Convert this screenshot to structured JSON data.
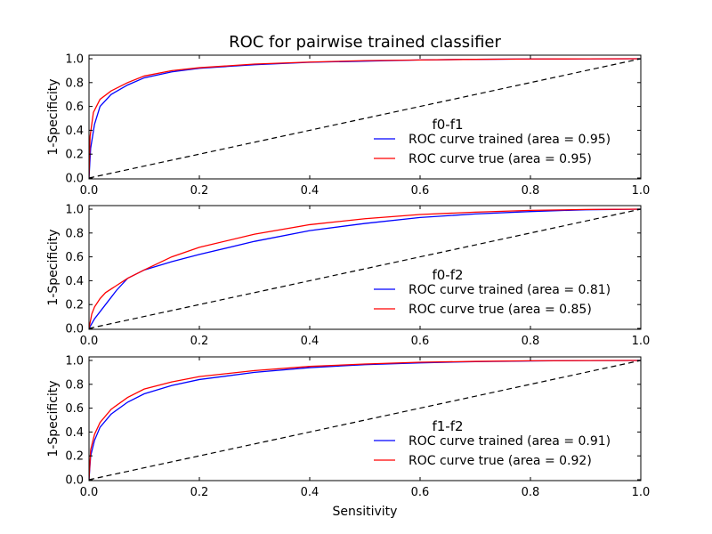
{
  "title": "ROC for pairwise trained classifier",
  "xlabel": "Sensitivity",
  "colors": {
    "trained": "#0000ff",
    "true": "#ff0000",
    "chance": "#000000"
  },
  "chart_data": [
    {
      "type": "line",
      "legend_title": "f0-f1",
      "ylabel": "1-Specificity",
      "xlim": [
        0,
        1
      ],
      "ylim": [
        0,
        1
      ],
      "xticks": [
        "0.0",
        "0.2",
        "0.4",
        "0.6",
        "0.8",
        "1.0"
      ],
      "yticks": [
        "0.0",
        "0.2",
        "0.4",
        "0.6",
        "0.8",
        "1.0"
      ],
      "legend": "lower-right",
      "grid": false,
      "series": [
        {
          "name": "ROC curve trained (area = 0.95)",
          "color": "#0000ff",
          "x": [
            0,
            0.003,
            0.01,
            0.02,
            0.04,
            0.07,
            0.1,
            0.15,
            0.2,
            0.3,
            0.4,
            0.5,
            0.6,
            0.7,
            0.8,
            0.9,
            1.0
          ],
          "y": [
            0,
            0.25,
            0.45,
            0.6,
            0.7,
            0.78,
            0.84,
            0.89,
            0.92,
            0.95,
            0.97,
            0.98,
            0.99,
            0.995,
            0.998,
            0.999,
            1.0
          ]
        },
        {
          "name": "ROC curve true (area = 0.95)",
          "color": "#ff0000",
          "x": [
            0,
            0.002,
            0.008,
            0.02,
            0.04,
            0.07,
            0.1,
            0.15,
            0.2,
            0.3,
            0.4,
            0.5,
            0.6,
            0.7,
            0.8,
            0.9,
            1.0
          ],
          "y": [
            0,
            0.35,
            0.55,
            0.66,
            0.73,
            0.8,
            0.855,
            0.9,
            0.925,
            0.955,
            0.972,
            0.984,
            0.99,
            0.995,
            0.998,
            0.999,
            1.0
          ]
        },
        {
          "name": "",
          "color": "#000000",
          "dashed": true,
          "x": [
            0,
            1
          ],
          "y": [
            0,
            1
          ]
        }
      ]
    },
    {
      "type": "line",
      "legend_title": "f0-f2",
      "ylabel": "1-Specificity",
      "xlim": [
        0,
        1
      ],
      "ylim": [
        0,
        1
      ],
      "xticks": [
        "0.0",
        "0.2",
        "0.4",
        "0.6",
        "0.8",
        "1.0"
      ],
      "yticks": [
        "0.0",
        "0.2",
        "0.4",
        "0.6",
        "0.8",
        "1.0"
      ],
      "legend": "lower-right",
      "grid": false,
      "series": [
        {
          "name": "ROC curve trained (area = 0.81)",
          "color": "#0000ff",
          "x": [
            0,
            0.01,
            0.03,
            0.05,
            0.07,
            0.1,
            0.15,
            0.2,
            0.3,
            0.4,
            0.5,
            0.6,
            0.7,
            0.8,
            0.9,
            1.0
          ],
          "y": [
            0,
            0.08,
            0.2,
            0.32,
            0.42,
            0.49,
            0.56,
            0.62,
            0.73,
            0.82,
            0.88,
            0.93,
            0.96,
            0.98,
            0.995,
            1.0
          ]
        },
        {
          "name": "ROC curve true (area = 0.85)",
          "color": "#ff0000",
          "x": [
            0,
            0.005,
            0.01,
            0.02,
            0.03,
            0.05,
            0.07,
            0.1,
            0.15,
            0.2,
            0.3,
            0.4,
            0.5,
            0.6,
            0.7,
            0.8,
            0.9,
            1.0
          ],
          "y": [
            0,
            0.12,
            0.18,
            0.25,
            0.3,
            0.36,
            0.42,
            0.49,
            0.6,
            0.68,
            0.79,
            0.87,
            0.92,
            0.955,
            0.975,
            0.99,
            0.997,
            1.0
          ]
        },
        {
          "name": "",
          "color": "#000000",
          "dashed": true,
          "x": [
            0,
            1
          ],
          "y": [
            0,
            1
          ]
        }
      ]
    },
    {
      "type": "line",
      "legend_title": "f1-f2",
      "ylabel": "1-Specificity",
      "xlim": [
        0,
        1
      ],
      "ylim": [
        0,
        1
      ],
      "xticks": [
        "0.0",
        "0.2",
        "0.4",
        "0.6",
        "0.8",
        "1.0"
      ],
      "yticks": [
        "0.0",
        "0.2",
        "0.4",
        "0.6",
        "0.8",
        "1.0"
      ],
      "legend": "lower-right",
      "grid": false,
      "series": [
        {
          "name": "ROC curve trained (area = 0.91)",
          "color": "#0000ff",
          "x": [
            0,
            0.003,
            0.01,
            0.02,
            0.04,
            0.07,
            0.1,
            0.15,
            0.2,
            0.3,
            0.4,
            0.5,
            0.6,
            0.7,
            0.8,
            0.9,
            1.0
          ],
          "y": [
            0,
            0.2,
            0.33,
            0.44,
            0.55,
            0.65,
            0.72,
            0.79,
            0.84,
            0.9,
            0.94,
            0.965,
            0.98,
            0.99,
            0.996,
            0.999,
            1.0
          ]
        },
        {
          "name": "ROC curve true (area = 0.92)",
          "color": "#ff0000",
          "x": [
            0,
            0.003,
            0.01,
            0.02,
            0.04,
            0.07,
            0.1,
            0.15,
            0.2,
            0.3,
            0.4,
            0.5,
            0.6,
            0.7,
            0.8,
            0.9,
            1.0
          ],
          "y": [
            0,
            0.25,
            0.38,
            0.48,
            0.59,
            0.69,
            0.76,
            0.82,
            0.865,
            0.915,
            0.95,
            0.97,
            0.985,
            0.992,
            0.997,
            0.999,
            1.0
          ]
        },
        {
          "name": "",
          "color": "#000000",
          "dashed": true,
          "x": [
            0,
            1
          ],
          "y": [
            0,
            1
          ]
        }
      ]
    }
  ]
}
